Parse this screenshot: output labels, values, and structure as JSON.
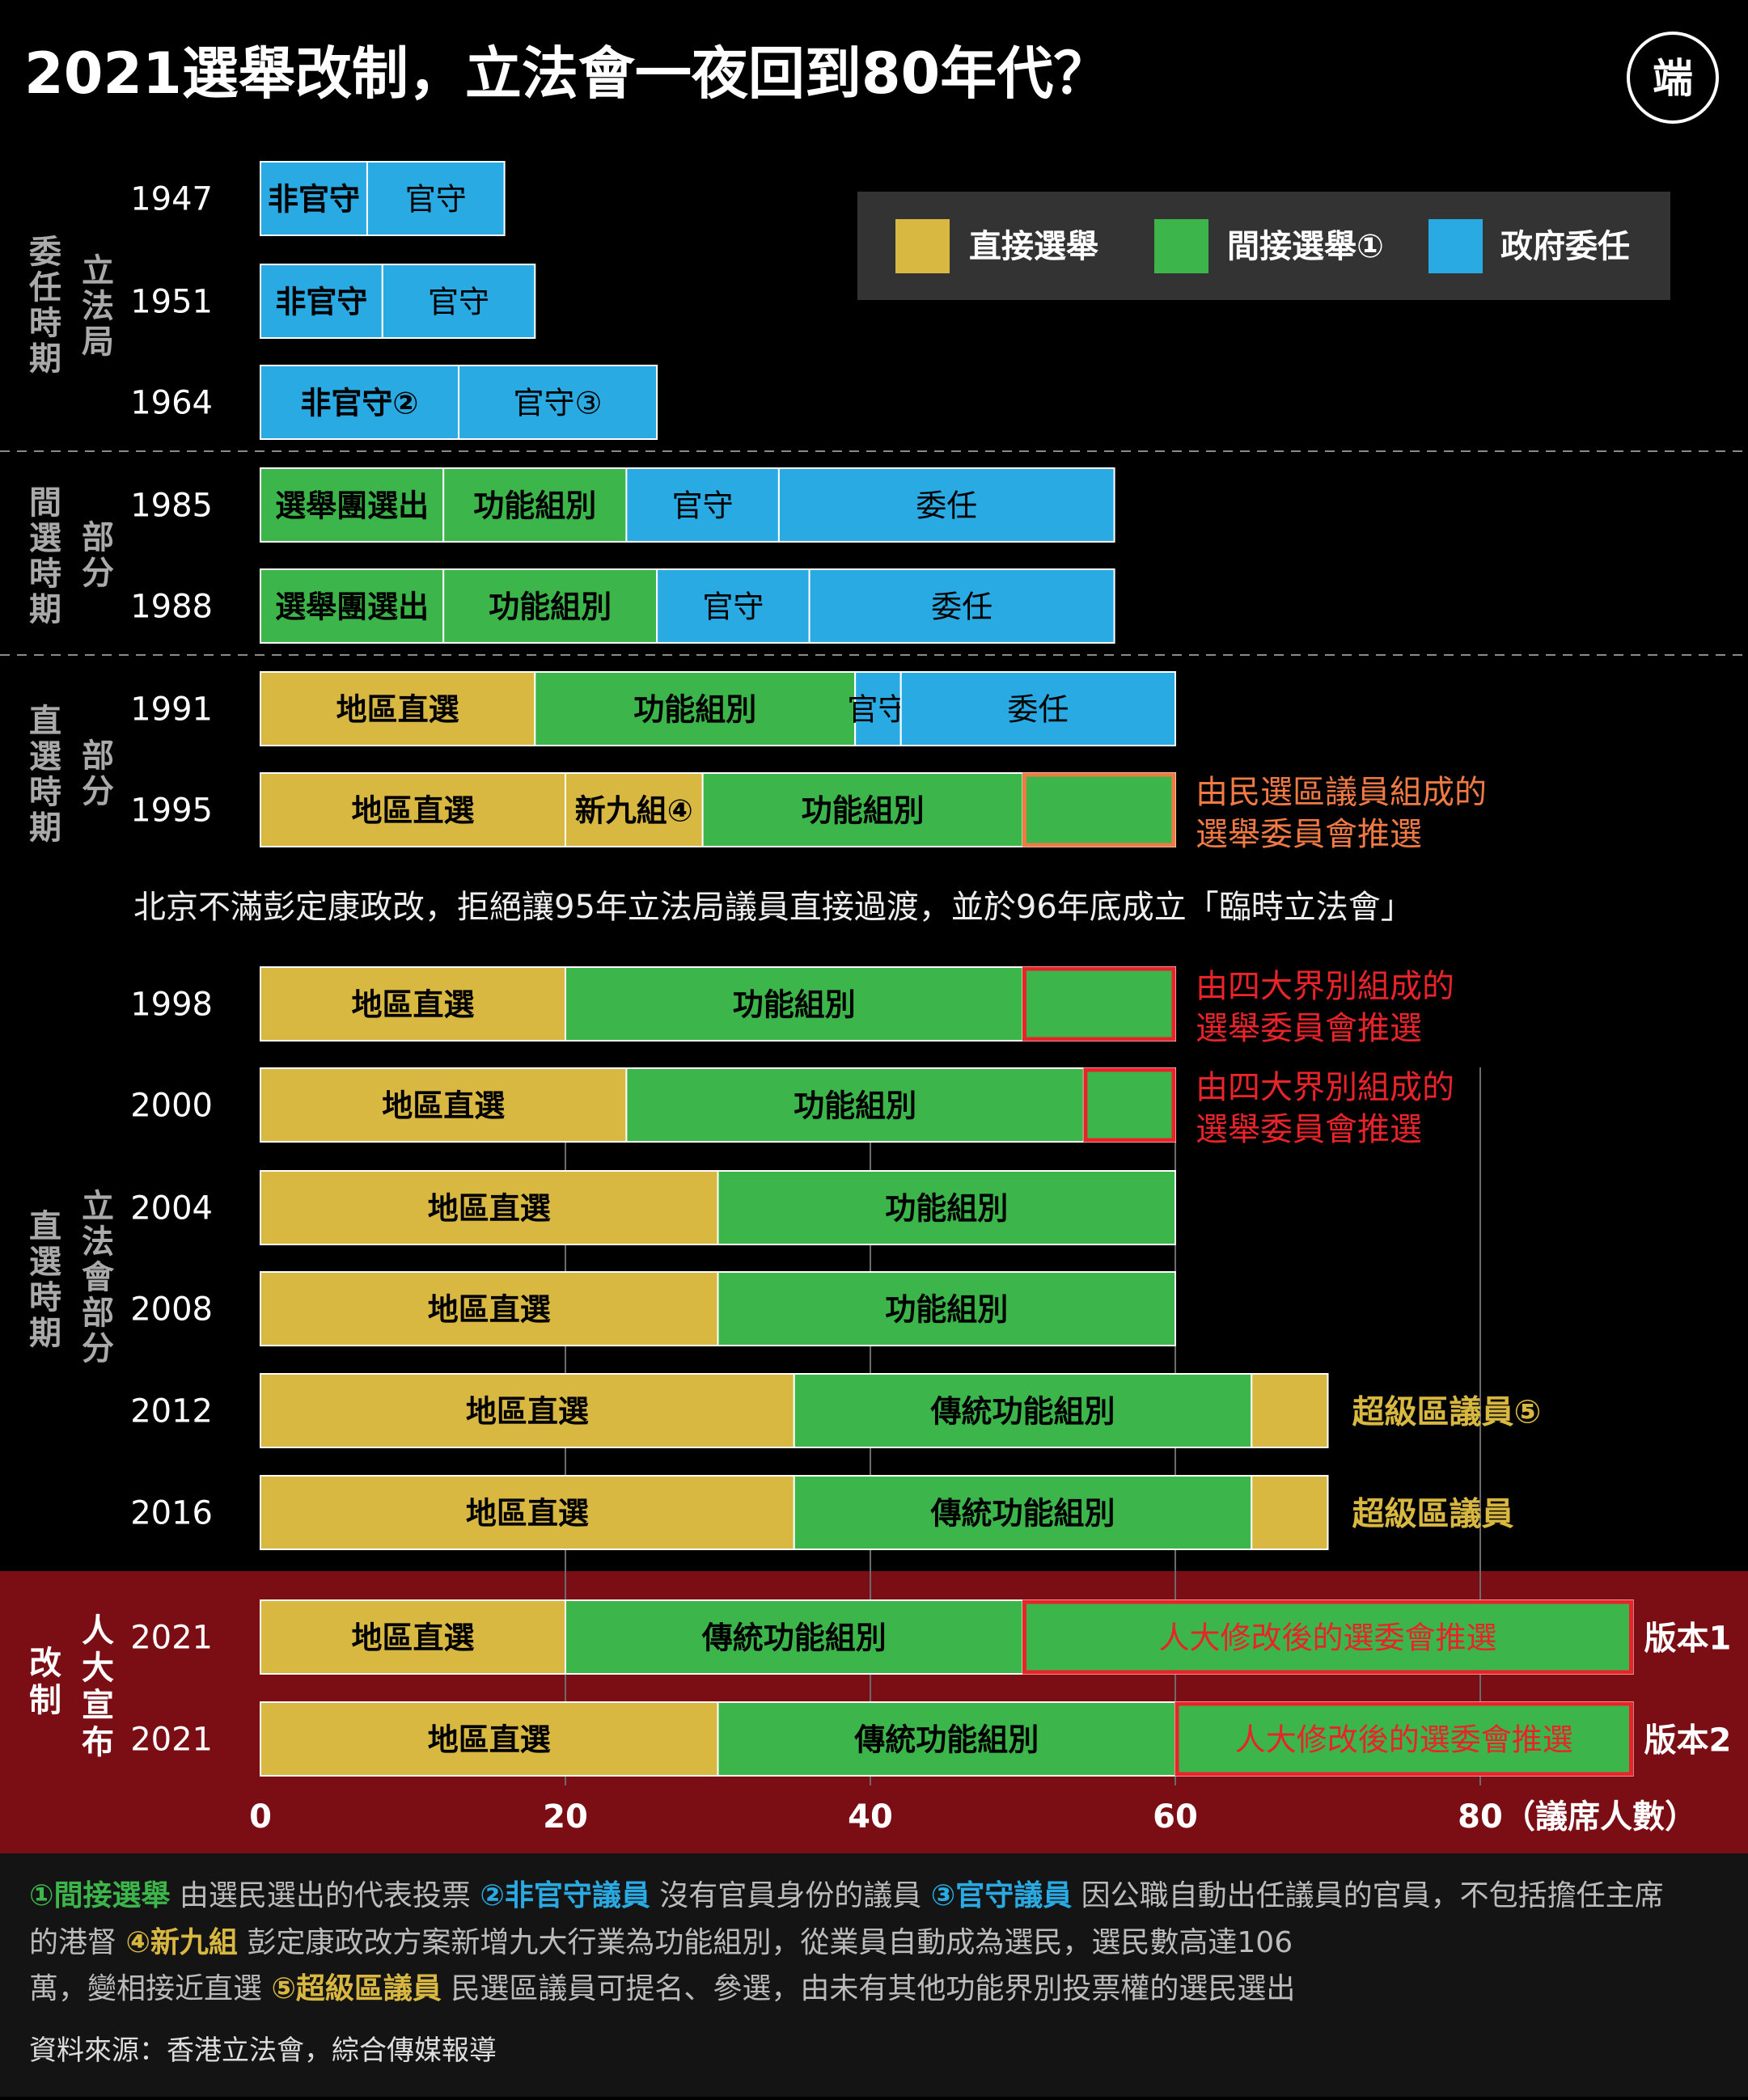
{
  "title": "2021選舉改制，立法會一夜回到80年代？",
  "logo_text": "端",
  "colors": {
    "direct": "#D9B842",
    "indirect": "#3CB54A",
    "appointed": "#2AAAE2",
    "reform_band": "#7A0E14",
    "footnote_band": "#141414",
    "annotation_orange": "#F07A44",
    "annotation_red": "#E8242A"
  },
  "legend": {
    "items": [
      {
        "key": "direct",
        "label": "直接選舉"
      },
      {
        "key": "indirect",
        "label": "間接選舉①"
      },
      {
        "key": "appointed",
        "label": "政府委任"
      }
    ]
  },
  "period_labels": [
    {
      "col1": "委任時期",
      "col2": "立法局"
    },
    {
      "col1": "間選時期",
      "col2": "部分"
    },
    {
      "col1": "直選時期",
      "col2": "部分"
    },
    {
      "col1": "直選時期",
      "col2": "立法會部分"
    },
    {
      "col1": "改制",
      "col2": "人大宣布"
    }
  ],
  "chart_data": {
    "type": "bar",
    "orientation": "horizontal",
    "stacked": true,
    "xlabel": "（議席人數）",
    "x_ticks": [
      0,
      20,
      40,
      60,
      80
    ],
    "xlim": [
      0,
      90
    ],
    "legend_position": "top-right",
    "rows": [
      {
        "year": "1947",
        "segments": [
          {
            "label": "非官守",
            "value": 7,
            "type": "appointed",
            "bold": true
          },
          {
            "label": "官守",
            "value": 9,
            "type": "appointed",
            "bold": false
          }
        ]
      },
      {
        "year": "1951",
        "segments": [
          {
            "label": "非官守",
            "value": 8,
            "type": "appointed",
            "bold": true
          },
          {
            "label": "官守",
            "value": 10,
            "type": "appointed",
            "bold": false
          }
        ]
      },
      {
        "year": "1964",
        "segments": [
          {
            "label": "非官守②",
            "value": 13,
            "type": "appointed",
            "bold": true
          },
          {
            "label": "官守③",
            "value": 13,
            "type": "appointed",
            "bold": false
          }
        ]
      },
      {
        "year": "1985",
        "segments": [
          {
            "label": "選舉團選出",
            "value": 12,
            "type": "indirect",
            "bold": true
          },
          {
            "label": "功能組別",
            "value": 12,
            "type": "indirect",
            "bold": true
          },
          {
            "label": "官守",
            "value": 10,
            "type": "appointed",
            "bold": false
          },
          {
            "label": "委任",
            "value": 22,
            "type": "appointed",
            "bold": false
          }
        ]
      },
      {
        "year": "1988",
        "segments": [
          {
            "label": "選舉團選出",
            "value": 12,
            "type": "indirect",
            "bold": true
          },
          {
            "label": "功能組別",
            "value": 14,
            "type": "indirect",
            "bold": true
          },
          {
            "label": "官守",
            "value": 10,
            "type": "appointed",
            "bold": false
          },
          {
            "label": "委任",
            "value": 20,
            "type": "appointed",
            "bold": false
          }
        ]
      },
      {
        "year": "1991",
        "segments": [
          {
            "label": "地區直選",
            "value": 18,
            "type": "direct",
            "bold": true
          },
          {
            "label": "功能組別",
            "value": 21,
            "type": "indirect",
            "bold": true
          },
          {
            "label": "官守",
            "value": 3,
            "type": "appointed",
            "bold": false
          },
          {
            "label": "委任",
            "value": 18,
            "type": "appointed",
            "bold": false
          }
        ]
      },
      {
        "year": "1995",
        "segments": [
          {
            "label": "地區直選",
            "value": 20,
            "type": "direct",
            "bold": true
          },
          {
            "label": "新九組④",
            "value": 9,
            "type": "direct",
            "bold": true
          },
          {
            "label": "功能組別",
            "value": 21,
            "type": "indirect",
            "bold": true
          },
          {
            "label": "",
            "value": 10,
            "type": "indirect",
            "bold": false,
            "outline": "orange"
          }
        ],
        "annotation": {
          "lines": [
            "由民選區議員組成的",
            "選舉委員會推選"
          ],
          "color": "orange"
        }
      },
      {
        "year": "1998",
        "segments": [
          {
            "label": "地區直選",
            "value": 20,
            "type": "direct",
            "bold": true
          },
          {
            "label": "功能組別",
            "value": 30,
            "type": "indirect",
            "bold": true
          },
          {
            "label": "",
            "value": 10,
            "type": "indirect",
            "bold": false,
            "outline": "red"
          }
        ],
        "annotation": {
          "lines": [
            "由四大界別組成的",
            "選舉委員會推選"
          ],
          "color": "red"
        }
      },
      {
        "year": "2000",
        "segments": [
          {
            "label": "地區直選",
            "value": 24,
            "type": "direct",
            "bold": true
          },
          {
            "label": "功能組別",
            "value": 30,
            "type": "indirect",
            "bold": true
          },
          {
            "label": "",
            "value": 6,
            "type": "indirect",
            "bold": false,
            "outline": "red"
          }
        ],
        "annotation": {
          "lines": [
            "由四大界別組成的",
            "選舉委員會推選"
          ],
          "color": "red"
        }
      },
      {
        "year": "2004",
        "segments": [
          {
            "label": "地區直選",
            "value": 30,
            "type": "direct",
            "bold": true
          },
          {
            "label": "功能組別",
            "value": 30,
            "type": "indirect",
            "bold": true
          }
        ]
      },
      {
        "year": "2008",
        "segments": [
          {
            "label": "地區直選",
            "value": 30,
            "type": "direct",
            "bold": true
          },
          {
            "label": "功能組別",
            "value": 30,
            "type": "indirect",
            "bold": true
          }
        ]
      },
      {
        "year": "2012",
        "segments": [
          {
            "label": "地區直選",
            "value": 35,
            "type": "direct",
            "bold": true
          },
          {
            "label": "傳統功能組別",
            "value": 30,
            "type": "indirect",
            "bold": true
          },
          {
            "label": "",
            "value": 5,
            "type": "direct",
            "bold": false
          }
        ],
        "annotation": {
          "lines": [
            "超級區議員⑤"
          ],
          "color": "direct"
        }
      },
      {
        "year": "2016",
        "segments": [
          {
            "label": "地區直選",
            "value": 35,
            "type": "direct",
            "bold": true
          },
          {
            "label": "傳統功能組別",
            "value": 30,
            "type": "indirect",
            "bold": true
          },
          {
            "label": "",
            "value": 5,
            "type": "direct",
            "bold": false
          }
        ],
        "annotation": {
          "lines": [
            "超級區議員"
          ],
          "color": "direct"
        }
      },
      {
        "year": "2021",
        "segments": [
          {
            "label": "地區直選",
            "value": 20,
            "type": "direct",
            "bold": true
          },
          {
            "label": "傳統功能組別",
            "value": 30,
            "type": "indirect",
            "bold": true
          },
          {
            "label": "人大修改後的選委會推選",
            "value": 40,
            "type": "indirect",
            "bold": false,
            "outline": "red",
            "text_color": "red"
          }
        ],
        "annotation": {
          "lines": [
            "版本1"
          ],
          "color": "white"
        }
      },
      {
        "year": "2021",
        "segments": [
          {
            "label": "地區直選",
            "value": 30,
            "type": "direct",
            "bold": true
          },
          {
            "label": "傳統功能組別",
            "value": 30,
            "type": "indirect",
            "bold": true
          },
          {
            "label": "人大修改後的選委會推選",
            "value": 30,
            "type": "indirect",
            "bold": false,
            "outline": "red",
            "text_color": "red"
          }
        ],
        "annotation": {
          "lines": [
            "版本2"
          ],
          "color": "white"
        }
      }
    ]
  },
  "interim_note": "北京不滿彭定康政改，拒絕讓95年立法局議員直接過渡，並於96年底成立「臨時立法會」",
  "footnotes": [
    {
      "term": "①間接選舉",
      "text": " 由選民選出的代表投票 "
    },
    {
      "term": "②非官守議員",
      "text": " 沒有官員身份的議員 "
    },
    {
      "term": "③官守議員",
      "text": " 因公職自動出任議員的官員，不包括擔任主席的港督 "
    },
    {
      "term": "④新九組",
      "text": " 彭定康政改方案新增九大行業為功能組別，從業員自動成為選民，選民數高達106萬，變相接近直選 "
    },
    {
      "term": "⑤超級區議員",
      "text": " 民選區議員可提名、參選，由未有其他功能界別投票權的選民選出"
    }
  ],
  "source": "資料來源：香港立法會，綜合傳媒報導"
}
